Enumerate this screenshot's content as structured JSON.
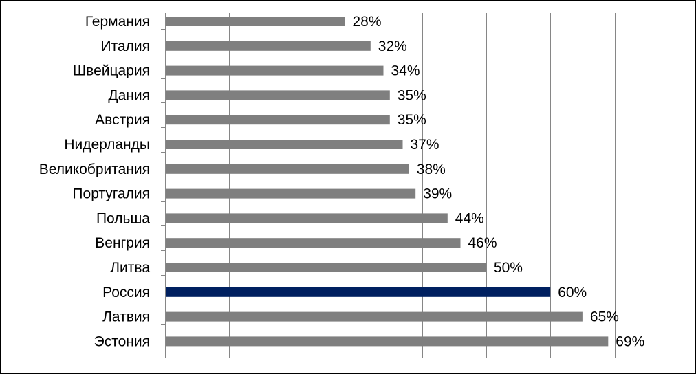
{
  "chart_data": {
    "type": "bar",
    "orientation": "horizontal",
    "title": "",
    "xlabel": "",
    "ylabel": "",
    "xlim": [
      0,
      0.8
    ],
    "grid": true,
    "legend": "none",
    "value_format": "percent",
    "categories": [
      "Германия",
      "Италия",
      "Швейцария",
      "Дания",
      "Австрия",
      "Нидерланды",
      "Великобритания",
      "Португалия",
      "Польша",
      "Венгрия",
      "Литва",
      "Россия",
      "Латвия",
      "Эстония"
    ],
    "values": [
      0.28,
      0.32,
      0.34,
      0.35,
      0.35,
      0.37,
      0.38,
      0.39,
      0.44,
      0.46,
      0.5,
      0.6,
      0.65,
      0.69
    ],
    "data_labels": [
      "28%",
      "32%",
      "34%",
      "35%",
      "35%",
      "37%",
      "38%",
      "39%",
      "44%",
      "46%",
      "50%",
      "60%",
      "65%",
      "69%"
    ],
    "highlight_category": "Россия",
    "colors": {
      "bar": "#7f7f7f",
      "highlight": "#002060",
      "grid": "#868686",
      "axis": "#868686"
    }
  }
}
